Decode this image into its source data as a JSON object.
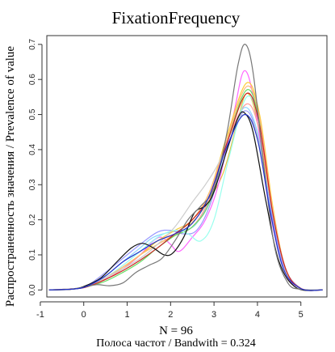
{
  "chart_data": {
    "type": "line",
    "title": "FixationFrequency",
    "xlabel_line1": "N = 96",
    "xlabel_line2": "Полоса частот / Bandwith = 0.324",
    "ylabel": "Распространенность значения / Prevalence of value",
    "xlim": [
      -0.85,
      5.6
    ],
    "ylim": [
      -0.02,
      0.725
    ],
    "x_ticks": [
      -1,
      0,
      1,
      2,
      3,
      4,
      5
    ],
    "y_ticks": [
      0.0,
      0.1,
      0.2,
      0.3,
      0.4,
      0.5,
      0.6,
      0.7
    ],
    "x_tick_labels": [
      "-1",
      "0",
      "1",
      "2",
      "3",
      "4",
      "5"
    ],
    "y_tick_labels": [
      "0.0",
      "0.1",
      "0.2",
      "0.3",
      "0.4",
      "0.5",
      "0.6",
      "0.7"
    ],
    "series": [
      {
        "color": "#e8bf3f",
        "points": [
          [
            -0.8,
            0
          ],
          [
            -0.2,
            0.004
          ],
          [
            0.1,
            0.012
          ],
          [
            0.5,
            0.03
          ],
          [
            0.9,
            0.06
          ],
          [
            1.3,
            0.1
          ],
          [
            1.7,
            0.13
          ],
          [
            2.0,
            0.15
          ],
          [
            2.4,
            0.18
          ],
          [
            2.8,
            0.24
          ],
          [
            3.2,
            0.33
          ],
          [
            3.5,
            0.46
          ],
          [
            3.75,
            0.56
          ],
          [
            4.0,
            0.48
          ],
          [
            4.3,
            0.24
          ],
          [
            4.6,
            0.07
          ],
          [
            5.0,
            0.005
          ],
          [
            5.5,
            0
          ]
        ]
      },
      {
        "color": "#ff66ff",
        "points": [
          [
            -0.8,
            0
          ],
          [
            -0.2,
            0.004
          ],
          [
            0.1,
            0.01
          ],
          [
            0.5,
            0.03
          ],
          [
            0.9,
            0.06
          ],
          [
            1.3,
            0.1
          ],
          [
            1.6,
            0.14
          ],
          [
            1.8,
            0.15
          ],
          [
            2.0,
            0.13
          ],
          [
            2.2,
            0.11
          ],
          [
            2.5,
            0.15
          ],
          [
            2.8,
            0.2
          ],
          [
            3.1,
            0.3
          ],
          [
            3.45,
            0.5
          ],
          [
            3.7,
            0.625
          ],
          [
            3.95,
            0.52
          ],
          [
            4.25,
            0.25
          ],
          [
            4.6,
            0.06
          ],
          [
            5.0,
            0.004
          ],
          [
            5.5,
            0
          ]
        ]
      },
      {
        "color": "#8fd3ff",
        "points": [
          [
            -0.8,
            0
          ],
          [
            -0.2,
            0.004
          ],
          [
            0.1,
            0.012
          ],
          [
            0.5,
            0.04
          ],
          [
            0.9,
            0.08
          ],
          [
            1.3,
            0.12
          ],
          [
            1.6,
            0.15
          ],
          [
            2.0,
            0.165
          ],
          [
            2.3,
            0.17
          ],
          [
            2.6,
            0.19
          ],
          [
            3.0,
            0.28
          ],
          [
            3.35,
            0.42
          ],
          [
            3.7,
            0.52
          ],
          [
            4.0,
            0.45
          ],
          [
            4.3,
            0.24
          ],
          [
            4.6,
            0.07
          ],
          [
            5.0,
            0.005
          ],
          [
            5.5,
            0
          ]
        ]
      },
      {
        "color": "#9999ff",
        "points": [
          [
            -0.8,
            0
          ],
          [
            -0.2,
            0.004
          ],
          [
            0.1,
            0.014
          ],
          [
            0.5,
            0.05
          ],
          [
            0.9,
            0.09
          ],
          [
            1.3,
            0.13
          ],
          [
            1.7,
            0.165
          ],
          [
            2.0,
            0.17
          ],
          [
            2.3,
            0.16
          ],
          [
            2.6,
            0.17
          ],
          [
            2.9,
            0.24
          ],
          [
            3.3,
            0.4
          ],
          [
            3.7,
            0.51
          ],
          [
            4.0,
            0.44
          ],
          [
            4.3,
            0.23
          ],
          [
            4.6,
            0.07
          ],
          [
            5.0,
            0.005
          ],
          [
            5.5,
            0
          ]
        ]
      },
      {
        "color": "#ff9999",
        "points": [
          [
            -0.8,
            0
          ],
          [
            -0.2,
            0.004
          ],
          [
            0.1,
            0.01
          ],
          [
            0.5,
            0.03
          ],
          [
            0.9,
            0.06
          ],
          [
            1.3,
            0.1
          ],
          [
            1.7,
            0.14
          ],
          [
            2.1,
            0.16
          ],
          [
            2.5,
            0.18
          ],
          [
            2.9,
            0.26
          ],
          [
            3.3,
            0.42
          ],
          [
            3.75,
            0.53
          ],
          [
            4.05,
            0.45
          ],
          [
            4.35,
            0.22
          ],
          [
            4.65,
            0.06
          ],
          [
            5.0,
            0.005
          ],
          [
            5.5,
            0
          ]
        ]
      },
      {
        "color": "#66dd66",
        "points": [
          [
            -0.8,
            0
          ],
          [
            -0.2,
            0.003
          ],
          [
            0.1,
            0.01
          ],
          [
            0.5,
            0.025
          ],
          [
            0.9,
            0.05
          ],
          [
            1.3,
            0.08
          ],
          [
            1.7,
            0.12
          ],
          [
            2.1,
            0.155
          ],
          [
            2.5,
            0.18
          ],
          [
            2.9,
            0.25
          ],
          [
            3.3,
            0.42
          ],
          [
            3.75,
            0.57
          ],
          [
            4.05,
            0.48
          ],
          [
            4.35,
            0.23
          ],
          [
            4.65,
            0.06
          ],
          [
            5.0,
            0.004
          ],
          [
            5.5,
            0
          ]
        ]
      },
      {
        "color": "#ffcc33",
        "points": [
          [
            -0.8,
            0
          ],
          [
            -0.2,
            0.004
          ],
          [
            0.1,
            0.012
          ],
          [
            0.5,
            0.035
          ],
          [
            0.9,
            0.065
          ],
          [
            1.3,
            0.1
          ],
          [
            1.7,
            0.14
          ],
          [
            2.1,
            0.17
          ],
          [
            2.5,
            0.2
          ],
          [
            2.9,
            0.28
          ],
          [
            3.3,
            0.44
          ],
          [
            3.75,
            0.59
          ],
          [
            4.05,
            0.5
          ],
          [
            4.35,
            0.24
          ],
          [
            4.65,
            0.06
          ],
          [
            5.0,
            0.004
          ],
          [
            5.5,
            0
          ]
        ]
      },
      {
        "color": "#99ffee",
        "points": [
          [
            -0.8,
            0
          ],
          [
            -0.2,
            0.004
          ],
          [
            0.1,
            0.012
          ],
          [
            0.5,
            0.035
          ],
          [
            0.9,
            0.07
          ],
          [
            1.3,
            0.11
          ],
          [
            1.7,
            0.15
          ],
          [
            2.1,
            0.17
          ],
          [
            2.4,
            0.16
          ],
          [
            2.7,
            0.14
          ],
          [
            3.0,
            0.2
          ],
          [
            3.35,
            0.38
          ],
          [
            3.75,
            0.55
          ],
          [
            4.05,
            0.47
          ],
          [
            4.35,
            0.23
          ],
          [
            4.65,
            0.06
          ],
          [
            5.0,
            0.004
          ],
          [
            5.5,
            0
          ]
        ]
      },
      {
        "color": "#ffbb77",
        "points": [
          [
            -0.8,
            0
          ],
          [
            -0.2,
            0.004
          ],
          [
            0.1,
            0.012
          ],
          [
            0.5,
            0.035
          ],
          [
            0.9,
            0.065
          ],
          [
            1.3,
            0.1
          ],
          [
            1.7,
            0.13
          ],
          [
            2.1,
            0.16
          ],
          [
            2.5,
            0.2
          ],
          [
            2.9,
            0.28
          ],
          [
            3.3,
            0.43
          ],
          [
            3.75,
            0.58
          ],
          [
            4.05,
            0.49
          ],
          [
            4.35,
            0.23
          ],
          [
            4.65,
            0.06
          ],
          [
            5.0,
            0.004
          ],
          [
            5.5,
            0
          ]
        ]
      },
      {
        "color": "#cccccc",
        "points": [
          [
            -0.8,
            0
          ],
          [
            -0.2,
            0.004
          ],
          [
            0.1,
            0.012
          ],
          [
            0.5,
            0.035
          ],
          [
            0.9,
            0.06
          ],
          [
            1.3,
            0.09
          ],
          [
            1.7,
            0.13
          ],
          [
            2.1,
            0.18
          ],
          [
            2.5,
            0.25
          ],
          [
            2.8,
            0.3
          ],
          [
            3.1,
            0.36
          ],
          [
            3.4,
            0.45
          ],
          [
            3.7,
            0.5
          ],
          [
            4.0,
            0.44
          ],
          [
            4.3,
            0.22
          ],
          [
            4.6,
            0.06
          ],
          [
            5.0,
            0.004
          ],
          [
            5.5,
            0
          ]
        ]
      },
      {
        "color": "#cc2222",
        "points": [
          [
            -0.8,
            0
          ],
          [
            -0.2,
            0.003
          ],
          [
            0.1,
            0.01
          ],
          [
            0.5,
            0.03
          ],
          [
            0.9,
            0.055
          ],
          [
            1.3,
            0.085
          ],
          [
            1.7,
            0.12
          ],
          [
            2.1,
            0.16
          ],
          [
            2.5,
            0.2
          ],
          [
            2.9,
            0.27
          ],
          [
            3.3,
            0.42
          ],
          [
            3.75,
            0.56
          ],
          [
            4.05,
            0.47
          ],
          [
            4.35,
            0.22
          ],
          [
            4.65,
            0.06
          ],
          [
            5.0,
            0.004
          ],
          [
            5.5,
            0
          ]
        ]
      },
      {
        "color": "#111111",
        "points": [
          [
            -0.8,
            0
          ],
          [
            -0.3,
            0.002
          ],
          [
            0.0,
            0.01
          ],
          [
            0.4,
            0.035
          ],
          [
            0.8,
            0.085
          ],
          [
            1.1,
            0.12
          ],
          [
            1.35,
            0.133
          ],
          [
            1.6,
            0.12
          ],
          [
            1.85,
            0.1
          ],
          [
            2.05,
            0.105
          ],
          [
            2.3,
            0.15
          ],
          [
            2.55,
            0.22
          ],
          [
            2.8,
            0.24
          ],
          [
            3.0,
            0.28
          ],
          [
            3.3,
            0.4
          ],
          [
            3.55,
            0.49
          ],
          [
            3.7,
            0.505
          ],
          [
            3.9,
            0.45
          ],
          [
            4.2,
            0.25
          ],
          [
            4.5,
            0.08
          ],
          [
            4.9,
            0.006
          ],
          [
            5.5,
            0
          ]
        ]
      },
      {
        "color": "#777777",
        "points": [
          [
            -0.8,
            0
          ],
          [
            -0.3,
            0.002
          ],
          [
            0.0,
            0.008
          ],
          [
            0.3,
            0.015
          ],
          [
            0.6,
            0.012
          ],
          [
            0.9,
            0.02
          ],
          [
            1.2,
            0.05
          ],
          [
            1.5,
            0.07
          ],
          [
            1.8,
            0.09
          ],
          [
            2.1,
            0.14
          ],
          [
            2.4,
            0.2
          ],
          [
            2.7,
            0.24
          ],
          [
            3.0,
            0.29
          ],
          [
            3.3,
            0.45
          ],
          [
            3.55,
            0.64
          ],
          [
            3.72,
            0.7
          ],
          [
            3.9,
            0.62
          ],
          [
            4.15,
            0.35
          ],
          [
            4.4,
            0.12
          ],
          [
            4.7,
            0.02
          ],
          [
            5.0,
            0.002
          ],
          [
            5.5,
            0
          ]
        ]
      },
      {
        "color": "#2233cc",
        "points": [
          [
            -0.8,
            0
          ],
          [
            -0.2,
            0.003
          ],
          [
            0.1,
            0.012
          ],
          [
            0.5,
            0.04
          ],
          [
            0.9,
            0.08
          ],
          [
            1.3,
            0.11
          ],
          [
            1.7,
            0.14
          ],
          [
            2.1,
            0.16
          ],
          [
            2.5,
            0.19
          ],
          [
            2.9,
            0.27
          ],
          [
            3.3,
            0.41
          ],
          [
            3.7,
            0.5
          ],
          [
            4.0,
            0.43
          ],
          [
            4.3,
            0.22
          ],
          [
            4.6,
            0.06
          ],
          [
            5.0,
            0.004
          ],
          [
            5.5,
            0
          ]
        ]
      }
    ]
  }
}
